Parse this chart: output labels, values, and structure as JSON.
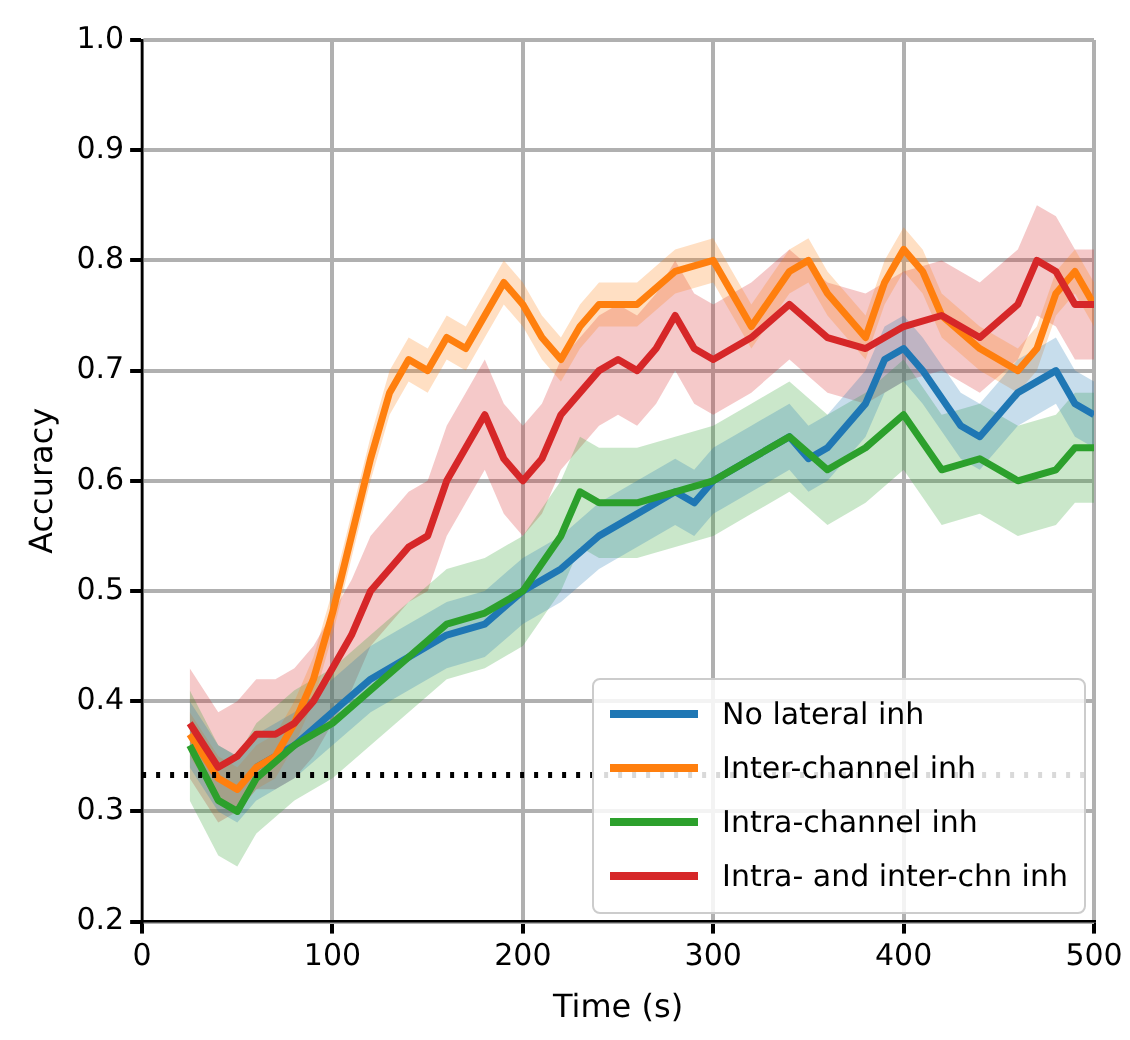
{
  "chart_data": {
    "type": "line",
    "xlabel": "Time (s)",
    "ylabel": "Accuracy",
    "xlim": [
      0,
      500
    ],
    "xticks": [
      0,
      100,
      200,
      300,
      400,
      500
    ],
    "ylim": [
      0.2,
      1.0
    ],
    "yticks": [
      0.2,
      0.3,
      0.4,
      0.5,
      0.6,
      0.7,
      0.8,
      0.9,
      {
        "value": 1.0,
        "label": "1.0"
      }
    ],
    "grid": true,
    "legend": "bottom right",
    "marker": "none",
    "ref_lines": [
      {
        "axis": "y",
        "value": 0.333,
        "color": "#000000",
        "line_style": "dotted"
      }
    ],
    "series": [
      {
        "name": "No lateral inh",
        "color": "#1f77b4",
        "x": [
          25,
          40,
          50,
          60,
          80,
          100,
          120,
          140,
          160,
          180,
          200,
          220,
          240,
          260,
          280,
          290,
          300,
          320,
          340,
          350,
          360,
          380,
          390,
          400,
          410,
          430,
          440,
          460,
          480,
          490,
          500
        ],
        "values": [
          null,
          null,
          null,
          0.34,
          0.36,
          0.39,
          0.42,
          0.44,
          0.46,
          0.47,
          0.5,
          0.52,
          0.55,
          0.57,
          0.59,
          0.58,
          0.6,
          0.62,
          0.64,
          0.62,
          0.63,
          0.67,
          0.71,
          0.72,
          0.7,
          0.65,
          0.64,
          0.68,
          0.7,
          0.67,
          0.66
        ],
        "lower": [
          0.34,
          0.3,
          0.29,
          0.31,
          0.33,
          0.36,
          0.39,
          0.41,
          0.43,
          0.44,
          0.47,
          0.49,
          0.52,
          0.54,
          0.56,
          0.55,
          0.57,
          0.59,
          0.61,
          0.59,
          0.6,
          0.64,
          0.68,
          0.69,
          0.67,
          0.62,
          0.61,
          0.65,
          0.67,
          0.64,
          0.63
        ],
        "upper": [
          0.4,
          0.36,
          0.35,
          0.37,
          0.39,
          0.42,
          0.45,
          0.47,
          0.49,
          0.5,
          0.53,
          0.55,
          0.58,
          0.6,
          0.62,
          0.61,
          0.63,
          0.65,
          0.67,
          0.65,
          0.66,
          0.7,
          0.74,
          0.75,
          0.73,
          0.68,
          0.67,
          0.71,
          0.73,
          0.7,
          0.69
        ]
      },
      {
        "name": "Inter-channel inh",
        "color": "#ff7f0e",
        "x": [
          25,
          40,
          50,
          60,
          70,
          80,
          90,
          100,
          110,
          120,
          130,
          140,
          150,
          160,
          170,
          180,
          190,
          200,
          210,
          220,
          230,
          240,
          260,
          280,
          300,
          310,
          320,
          340,
          350,
          360,
          370,
          380,
          390,
          400,
          410,
          420,
          440,
          460,
          470,
          480,
          490,
          500
        ],
        "values": [
          0.37,
          0.33,
          0.32,
          0.34,
          0.35,
          0.38,
          0.42,
          0.48,
          0.55,
          0.62,
          0.68,
          0.71,
          0.7,
          0.73,
          0.72,
          0.75,
          0.78,
          0.76,
          0.73,
          0.71,
          0.74,
          0.76,
          0.76,
          0.79,
          0.8,
          0.77,
          0.74,
          0.79,
          0.8,
          0.77,
          0.75,
          0.73,
          0.78,
          0.81,
          0.79,
          0.75,
          0.72,
          0.7,
          0.72,
          0.77,
          0.79,
          0.76
        ],
        "lower": [
          0.35,
          0.31,
          0.3,
          0.32,
          0.33,
          0.36,
          0.4,
          0.46,
          0.53,
          0.6,
          0.66,
          0.69,
          0.68,
          0.71,
          0.7,
          0.73,
          0.76,
          0.74,
          0.71,
          0.69,
          0.72,
          0.74,
          0.74,
          0.77,
          0.78,
          0.75,
          0.72,
          0.77,
          0.78,
          0.75,
          0.73,
          0.71,
          0.76,
          0.79,
          0.77,
          0.73,
          0.7,
          0.68,
          0.7,
          0.75,
          0.77,
          0.74
        ],
        "upper": [
          0.39,
          0.35,
          0.34,
          0.36,
          0.37,
          0.4,
          0.44,
          0.5,
          0.57,
          0.64,
          0.7,
          0.73,
          0.72,
          0.75,
          0.74,
          0.77,
          0.8,
          0.78,
          0.75,
          0.73,
          0.76,
          0.78,
          0.78,
          0.81,
          0.82,
          0.79,
          0.76,
          0.81,
          0.82,
          0.79,
          0.77,
          0.75,
          0.8,
          0.83,
          0.81,
          0.77,
          0.74,
          0.72,
          0.74,
          0.79,
          0.81,
          0.78
        ]
      },
      {
        "name": "Intra-channel inh",
        "color": "#2ca02c",
        "x": [
          25,
          40,
          50,
          60,
          80,
          100,
          120,
          140,
          160,
          180,
          200,
          220,
          230,
          240,
          260,
          280,
          300,
          320,
          340,
          360,
          380,
          400,
          420,
          440,
          460,
          480,
          490,
          500
        ],
        "values": [
          0.36,
          0.31,
          0.3,
          0.33,
          0.36,
          0.38,
          0.41,
          0.44,
          0.47,
          0.48,
          0.5,
          0.55,
          0.59,
          0.58,
          0.58,
          0.59,
          0.6,
          0.62,
          0.64,
          0.61,
          0.63,
          0.66,
          0.61,
          0.62,
          0.6,
          0.61,
          0.63,
          0.63
        ],
        "lower": [
          0.31,
          0.26,
          0.25,
          0.28,
          0.31,
          0.33,
          0.36,
          0.39,
          0.42,
          0.43,
          0.45,
          0.5,
          0.54,
          0.53,
          0.53,
          0.54,
          0.55,
          0.57,
          0.59,
          0.56,
          0.58,
          0.61,
          0.56,
          0.57,
          0.55,
          0.56,
          0.58,
          0.58
        ],
        "upper": [
          0.41,
          0.36,
          0.35,
          0.38,
          0.41,
          0.43,
          0.46,
          0.49,
          0.52,
          0.53,
          0.55,
          0.6,
          0.64,
          0.63,
          0.63,
          0.64,
          0.65,
          0.67,
          0.69,
          0.66,
          0.68,
          0.71,
          0.66,
          0.67,
          0.65,
          0.66,
          0.68,
          0.68
        ]
      },
      {
        "name": "Intra- and inter-chn inh",
        "color": "#d62728",
        "x": [
          25,
          40,
          50,
          60,
          70,
          80,
          90,
          100,
          110,
          120,
          130,
          140,
          150,
          160,
          170,
          180,
          190,
          200,
          210,
          220,
          230,
          240,
          250,
          260,
          270,
          280,
          290,
          300,
          320,
          340,
          360,
          380,
          400,
          420,
          440,
          460,
          470,
          480,
          490,
          500
        ],
        "values": [
          0.38,
          0.34,
          0.35,
          0.37,
          0.37,
          0.38,
          0.4,
          0.43,
          0.46,
          0.5,
          0.52,
          0.54,
          0.55,
          0.6,
          0.63,
          0.66,
          0.62,
          0.6,
          0.62,
          0.66,
          0.68,
          0.7,
          0.71,
          0.7,
          0.72,
          0.75,
          0.72,
          0.71,
          0.73,
          0.76,
          0.73,
          0.72,
          0.74,
          0.75,
          0.73,
          0.76,
          0.8,
          0.79,
          0.76,
          0.76
        ],
        "lower": [
          0.33,
          0.29,
          0.3,
          0.32,
          0.32,
          0.33,
          0.35,
          0.38,
          0.41,
          0.45,
          0.47,
          0.49,
          0.5,
          0.55,
          0.58,
          0.61,
          0.57,
          0.55,
          0.57,
          0.61,
          0.63,
          0.65,
          0.66,
          0.65,
          0.67,
          0.7,
          0.67,
          0.66,
          0.68,
          0.71,
          0.68,
          0.67,
          0.69,
          0.7,
          0.68,
          0.71,
          0.75,
          0.74,
          0.71,
          0.71
        ],
        "upper": [
          0.43,
          0.39,
          0.4,
          0.42,
          0.42,
          0.43,
          0.45,
          0.48,
          0.51,
          0.55,
          0.57,
          0.59,
          0.6,
          0.65,
          0.68,
          0.71,
          0.67,
          0.65,
          0.67,
          0.71,
          0.73,
          0.75,
          0.76,
          0.75,
          0.77,
          0.8,
          0.77,
          0.76,
          0.78,
          0.81,
          0.78,
          0.77,
          0.79,
          0.8,
          0.78,
          0.81,
          0.85,
          0.84,
          0.81,
          0.81
        ]
      }
    ]
  }
}
